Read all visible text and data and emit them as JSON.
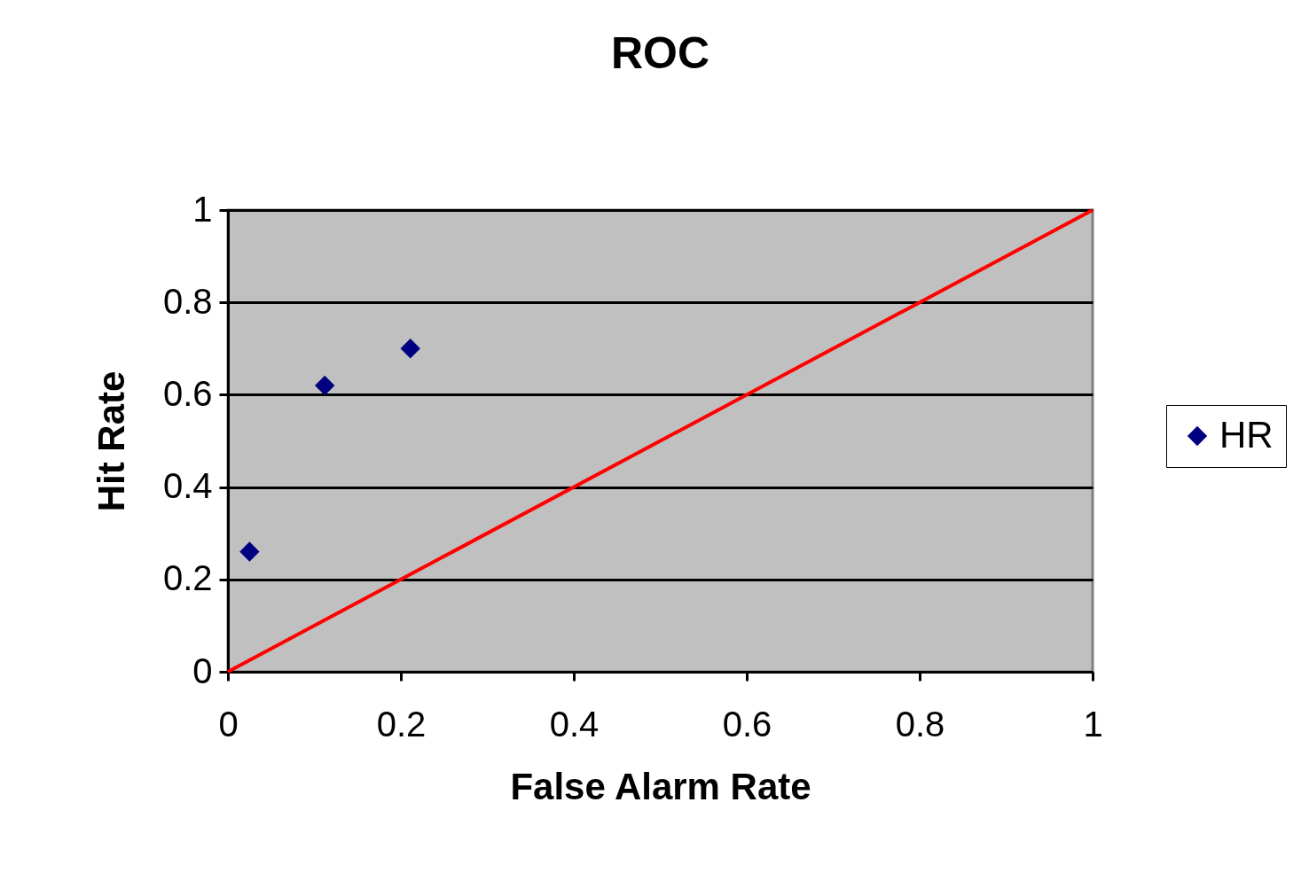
{
  "chart_data": {
    "type": "scatter",
    "title": "ROC",
    "xlabel": "False Alarm Rate",
    "ylabel": "Hit Rate",
    "xlim": [
      0,
      1
    ],
    "ylim": [
      0,
      1
    ],
    "xticks": [
      0,
      0.2,
      0.4,
      0.6,
      0.8,
      1
    ],
    "yticks": [
      0,
      0.2,
      0.4,
      0.6,
      0.8,
      1
    ],
    "grid": "y",
    "legend": "right",
    "marker": "diamond",
    "series": [
      {
        "name": "HR",
        "color": "#000080",
        "x": [
          0.025,
          0.112,
          0.211
        ],
        "values": [
          0.26,
          0.62,
          0.7
        ]
      },
      {
        "type": "line",
        "marker": "none",
        "color": "#ff0000",
        "x": [
          0,
          1
        ],
        "values": [
          0,
          1
        ]
      }
    ]
  }
}
